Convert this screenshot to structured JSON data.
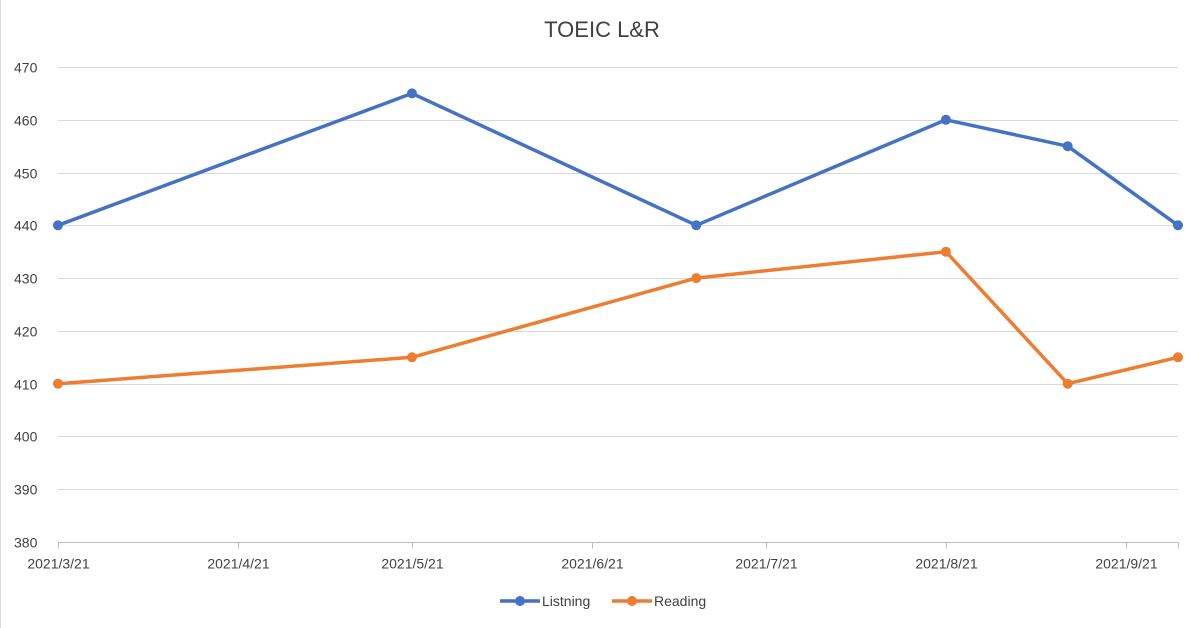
{
  "chart_data": {
    "type": "line",
    "title": "TOEIC L&R",
    "xlabel": "",
    "ylabel": "",
    "x_axis": {
      "type": "date",
      "range": [
        "2021-03-21",
        "2021-09-30"
      ],
      "ticks": [
        "2021-03-21",
        "2021-04-21",
        "2021-05-21",
        "2021-06-21",
        "2021-07-21",
        "2021-08-21",
        "2021-09-21"
      ],
      "tick_labels": [
        "2021/3/21",
        "2021/4/21",
        "2021/5/21",
        "2021/6/21",
        "2021/7/21",
        "2021/8/21",
        "2021/9/21"
      ]
    },
    "ylim": [
      380,
      470
    ],
    "y_ticks": [
      380,
      390,
      400,
      410,
      420,
      430,
      440,
      450,
      460,
      470
    ],
    "grid": true,
    "legend_position": "bottom",
    "series": [
      {
        "name": "Listning",
        "color": "#4472C4",
        "points": [
          {
            "x": "2021-03-21",
            "y": 440
          },
          {
            "x": "2021-05-21",
            "y": 465
          },
          {
            "x": "2021-07-09",
            "y": 440
          },
          {
            "x": "2021-08-21",
            "y": 460
          },
          {
            "x": "2021-09-11",
            "y": 455
          },
          {
            "x": "2021-09-30",
            "y": 440
          }
        ]
      },
      {
        "name": "Reading",
        "color": "#ED7D31",
        "points": [
          {
            "x": "2021-03-21",
            "y": 410
          },
          {
            "x": "2021-05-21",
            "y": 415
          },
          {
            "x": "2021-07-09",
            "y": 430
          },
          {
            "x": "2021-08-21",
            "y": 435
          },
          {
            "x": "2021-09-11",
            "y": 410
          },
          {
            "x": "2021-09-30",
            "y": 415
          }
        ]
      }
    ]
  }
}
